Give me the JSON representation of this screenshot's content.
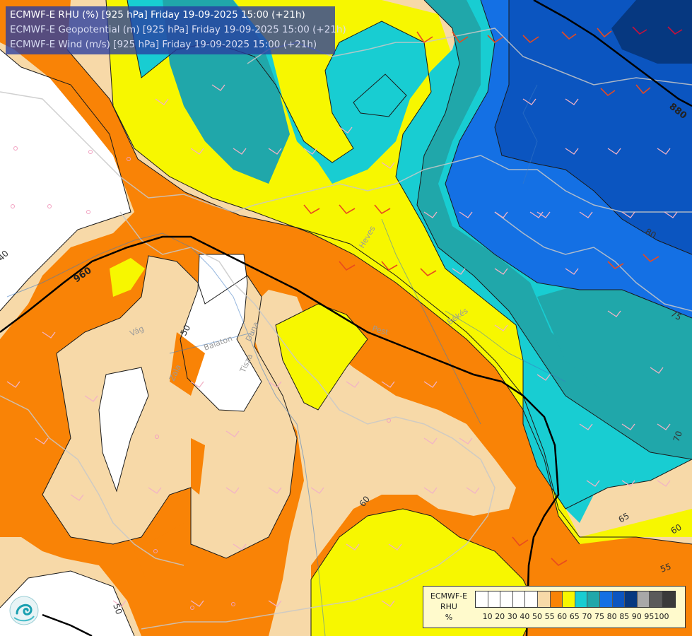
{
  "title": {
    "line1": "ECMWF-E RHU (%) [925 hPa] Friday 19-09-2025 15:00 (+21h)",
    "line2": "ECMWF-E Geopotential (m) [925 hPa] Friday 19-09-2025 15:00 (+21h)",
    "line3": "ECMWF-E Wind (m/s) [925 hPa] Friday 19-09-2025 15:00 (+21h)"
  },
  "legend": {
    "line1": "ECMWF-E",
    "line2": "RHU",
    "unit": "%",
    "ticks": [
      "10",
      "20",
      "30",
      "40",
      "50",
      "55",
      "60",
      "65",
      "70",
      "75",
      "80",
      "85",
      "90",
      "95",
      "100"
    ],
    "colors": [
      "#ffffff",
      "#ffffff",
      "#ffffff",
      "#ffffff",
      "#ffffff",
      "#f7d9a8",
      "#f98306",
      "#f7f700",
      "#18cdd2",
      "#20a7aa",
      "#1470e4",
      "#0b55c0",
      "#063880",
      "#a8a8a8",
      "#5b5b5b",
      "#3a3a3a"
    ]
  },
  "colors": {
    "rhu_lt50": "#ffffff",
    "rhu_50_55": "#f7d9a8",
    "rhu_55_60": "#f98306",
    "rhu_60_65": "#f7f700",
    "rhu_65_70": "#18cdd2",
    "rhu_70_75": "#20a7aa",
    "rhu_75_80": "#1470e4",
    "rhu_80_85": "#0b55c0",
    "rhu_85_90": "#063880"
  },
  "contour_labels": [
    "40",
    "50",
    "50",
    "60",
    "65",
    "60",
    "55",
    "70",
    "75",
    "80"
  ],
  "geopotential_labels": [
    "960",
    "880"
  ],
  "place_labels": [
    "Vág",
    "Zala",
    "Balaton",
    "Duna",
    "Tisza",
    "Pest",
    "Heves",
    "Békés"
  ]
}
